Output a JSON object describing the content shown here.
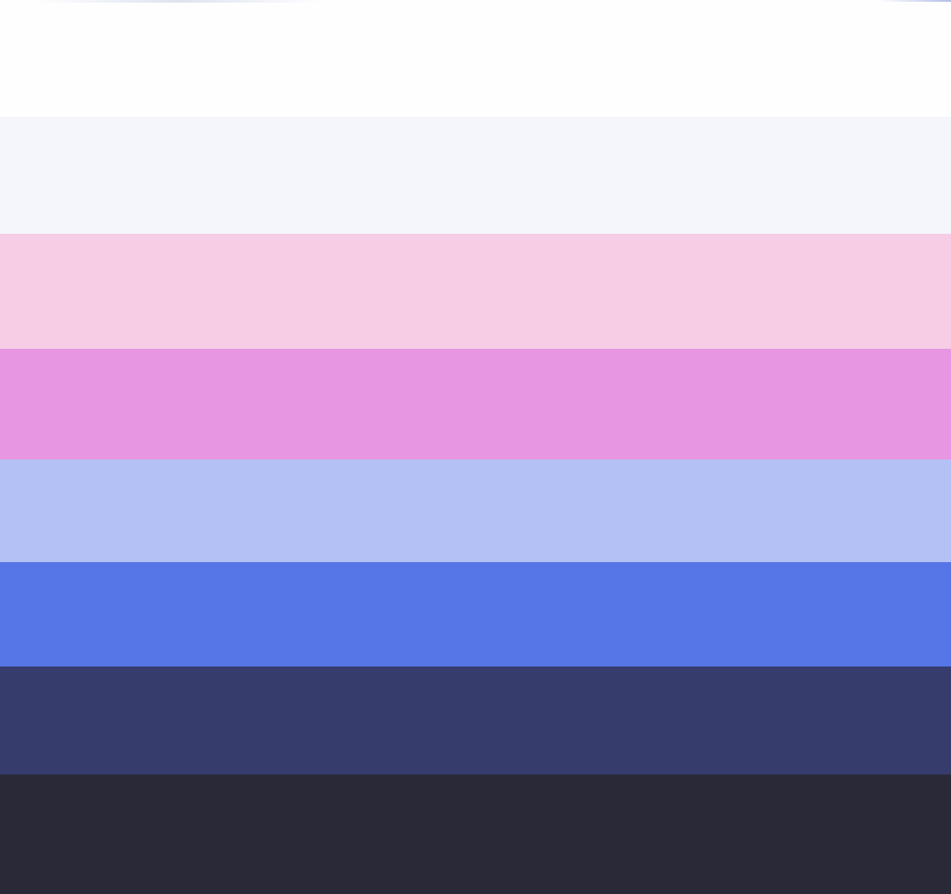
{
  "palette": {
    "swatches": [
      {
        "color": "#FEFEFF"
      },
      {
        "color": "#F4F6FB"
      },
      {
        "color": "#F6CDE5"
      },
      {
        "color": "#E796E2"
      },
      {
        "color": "#B3C1F5"
      },
      {
        "color": "#5676E8"
      },
      {
        "color": "#363C6B"
      },
      {
        "color": "#2A2938"
      }
    ]
  }
}
